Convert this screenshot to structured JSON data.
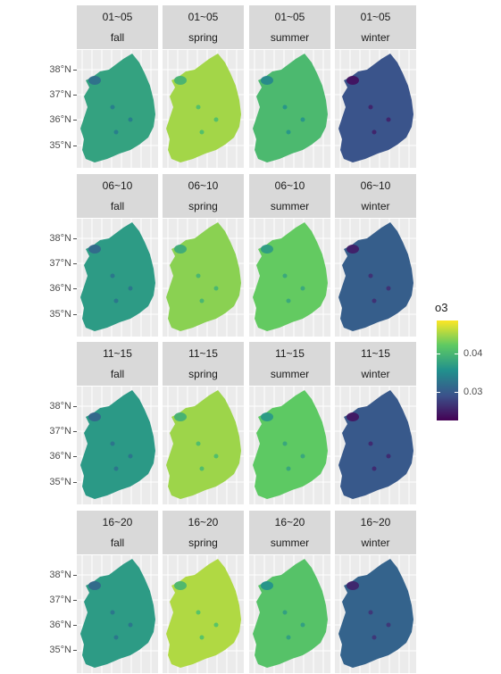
{
  "facets": {
    "rows": [
      "01~05",
      "06~10",
      "11~15",
      "16~20"
    ],
    "cols": [
      "fall",
      "spring",
      "summer",
      "winter"
    ],
    "relative_level": {
      "fall": [
        0.58,
        0.55,
        0.54,
        0.55
      ],
      "spring": [
        0.86,
        0.82,
        0.85,
        0.88
      ],
      "summer": [
        0.68,
        0.76,
        0.75,
        0.72
      ],
      "winter": [
        0.26,
        0.3,
        0.28,
        0.32
      ]
    }
  },
  "y_axis": {
    "labels": [
      "38°N",
      "37°N",
      "36°N",
      "35°N"
    ]
  },
  "legend": {
    "title": "o3",
    "ticks": [
      "0.04",
      "0.03"
    ],
    "colors": [
      "#440154",
      "#3b528b",
      "#21908d",
      "#5dc963",
      "#fde725"
    ]
  }
}
